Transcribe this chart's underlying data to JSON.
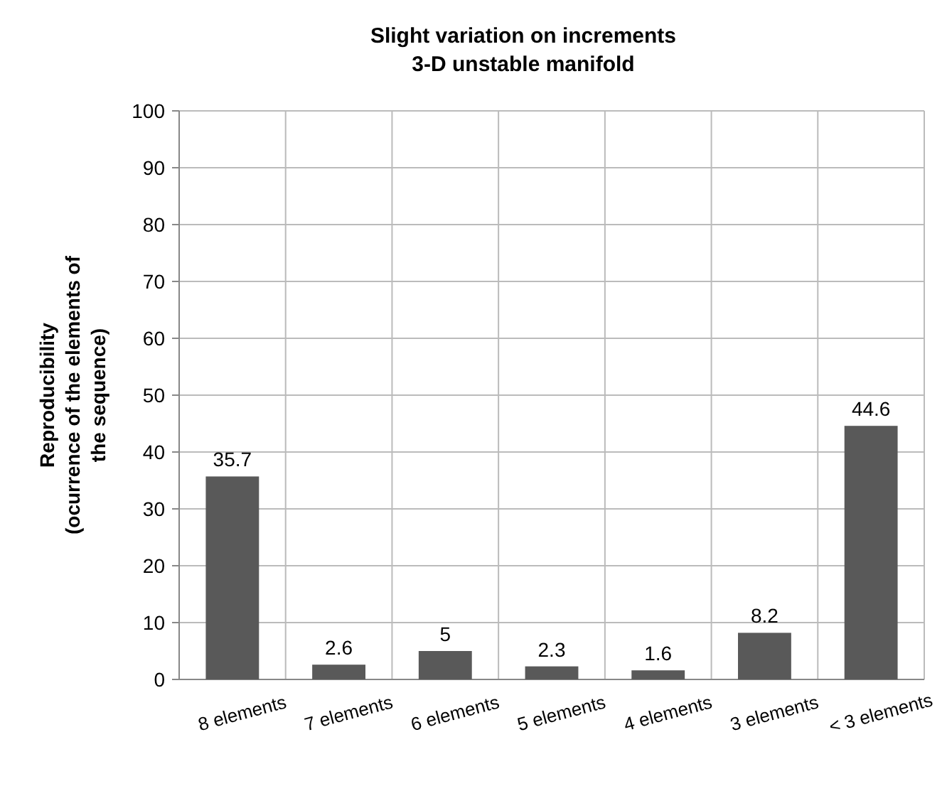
{
  "chart_data": {
    "type": "bar",
    "title": "Slight variation on increments\n3-D unstable manifold",
    "ylabel": "Reproducibility\n(ocurrence of the elements of\nthe sequence)",
    "categories": [
      "8 elements",
      "7 elements",
      "6 elements",
      "5 elements",
      "4 elements",
      "3 elements",
      "< 3 elements"
    ],
    "values": [
      35.7,
      2.6,
      5,
      2.3,
      1.6,
      8.2,
      44.6
    ],
    "color": "#595959",
    "data_labels": true,
    "ylim": [
      0,
      100
    ],
    "yticks": [
      0,
      10,
      20,
      30,
      40,
      50,
      60,
      70,
      80,
      90,
      100
    ],
    "grid": true
  }
}
